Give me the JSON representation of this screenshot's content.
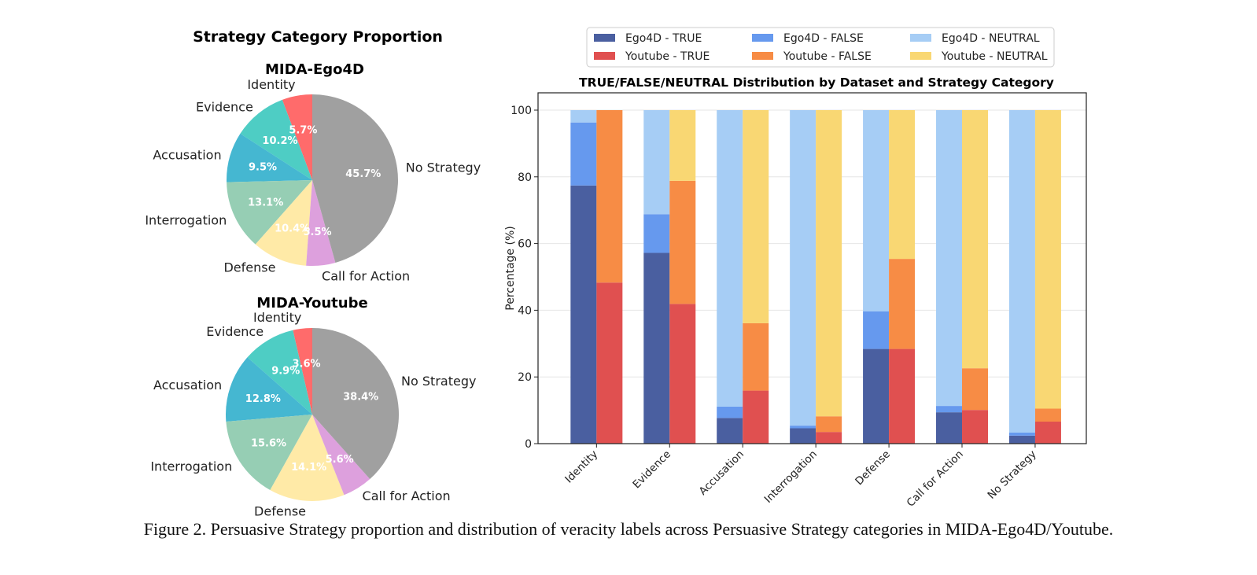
{
  "caption": "Figure 2. Persuasive Strategy proportion and distribution of veracity labels across Persuasive Strategy categories in MIDA-Ego4D/Youtube.",
  "chart_data": [
    {
      "type": "pie",
      "suptitle": "Strategy Category Proportion",
      "title": "MIDA-Ego4D",
      "start_angle_deg": 90,
      "direction": "counterclockwise",
      "labels": [
        "Identity",
        "Evidence",
        "Accusation",
        "Interrogation",
        "Defense",
        "Call for Action",
        "No Strategy"
      ],
      "values": [
        5.7,
        10.2,
        9.5,
        13.1,
        10.4,
        5.5,
        45.7
      ],
      "value_labels": [
        "5.7%",
        "10.2%",
        "9.5%",
        "13.1%",
        "10.4%",
        "5.5%",
        "45.7%"
      ],
      "colors": [
        "#ff6b6b",
        "#4ecdc4",
        "#45b7d1",
        "#96ceb4",
        "#ffeaa7",
        "#dda0dd",
        "#a0a0a0"
      ]
    },
    {
      "type": "pie",
      "title": "MIDA-Youtube",
      "start_angle_deg": 90,
      "direction": "counterclockwise",
      "labels": [
        "Identity",
        "Evidence",
        "Accusation",
        "Interrogation",
        "Defense",
        "Call for Action",
        "No Strategy"
      ],
      "values": [
        3.6,
        9.9,
        12.8,
        15.6,
        14.1,
        5.6,
        38.4
      ],
      "value_labels": [
        "3.6%",
        "9.9%",
        "12.8%",
        "15.6%",
        "14.1%",
        "5.6%",
        "38.4%"
      ],
      "colors": [
        "#ff6b6b",
        "#4ecdc4",
        "#45b7d1",
        "#96ceb4",
        "#ffeaa7",
        "#dda0dd",
        "#a0a0a0"
      ]
    },
    {
      "type": "bar",
      "stacked": true,
      "title": "TRUE/FALSE/NEUTRAL Distribution by Dataset and Strategy Category",
      "xlabel": "",
      "ylabel": "Percentage (%)",
      "ylim": [
        0,
        105
      ],
      "yticks": [
        0,
        20,
        40,
        60,
        80,
        100
      ],
      "grid": true,
      "legend_position": "top-center",
      "categories": [
        "Identity",
        "Evidence",
        "Accusation",
        "Interrogation",
        "Defense",
        "Call for Action",
        "No Strategy"
      ],
      "groups": [
        {
          "dataset": "Ego4D",
          "series": [
            {
              "name": "Ego4D - TRUE",
              "color": "#4a5fa0",
              "values": [
                77.4,
                57.2,
                7.7,
                4.6,
                28.4,
                9.4,
                2.4
              ]
            },
            {
              "name": "Ego4D - FALSE",
              "color": "#6699ee",
              "values": [
                18.9,
                11.6,
                3.4,
                0.8,
                11.3,
                1.9,
                0.9
              ]
            },
            {
              "name": "Ego4D - NEUTRAL",
              "color": "#a6cdf5",
              "values": [
                3.7,
                31.2,
                88.9,
                94.6,
                60.3,
                88.7,
                96.7
              ]
            }
          ]
        },
        {
          "dataset": "Youtube",
          "series": [
            {
              "name": "Youtube - TRUE",
              "color": "#e05050",
              "values": [
                48.3,
                41.9,
                15.9,
                3.5,
                28.4,
                10.1,
                6.6
              ]
            },
            {
              "name": "Youtube - FALSE",
              "color": "#f78c45",
              "values": [
                51.7,
                36.9,
                20.2,
                4.7,
                27.0,
                12.5,
                3.9
              ]
            },
            {
              "name": "Youtube - NEUTRAL",
              "color": "#f9d773",
              "values": [
                0.0,
                21.2,
                63.9,
                91.8,
                44.6,
                77.4,
                89.5
              ]
            }
          ]
        }
      ],
      "legend": [
        "Ego4D - TRUE",
        "Youtube - TRUE",
        "Ego4D - FALSE",
        "Youtube - FALSE",
        "Ego4D - NEUTRAL",
        "Youtube - NEUTRAL"
      ]
    }
  ]
}
